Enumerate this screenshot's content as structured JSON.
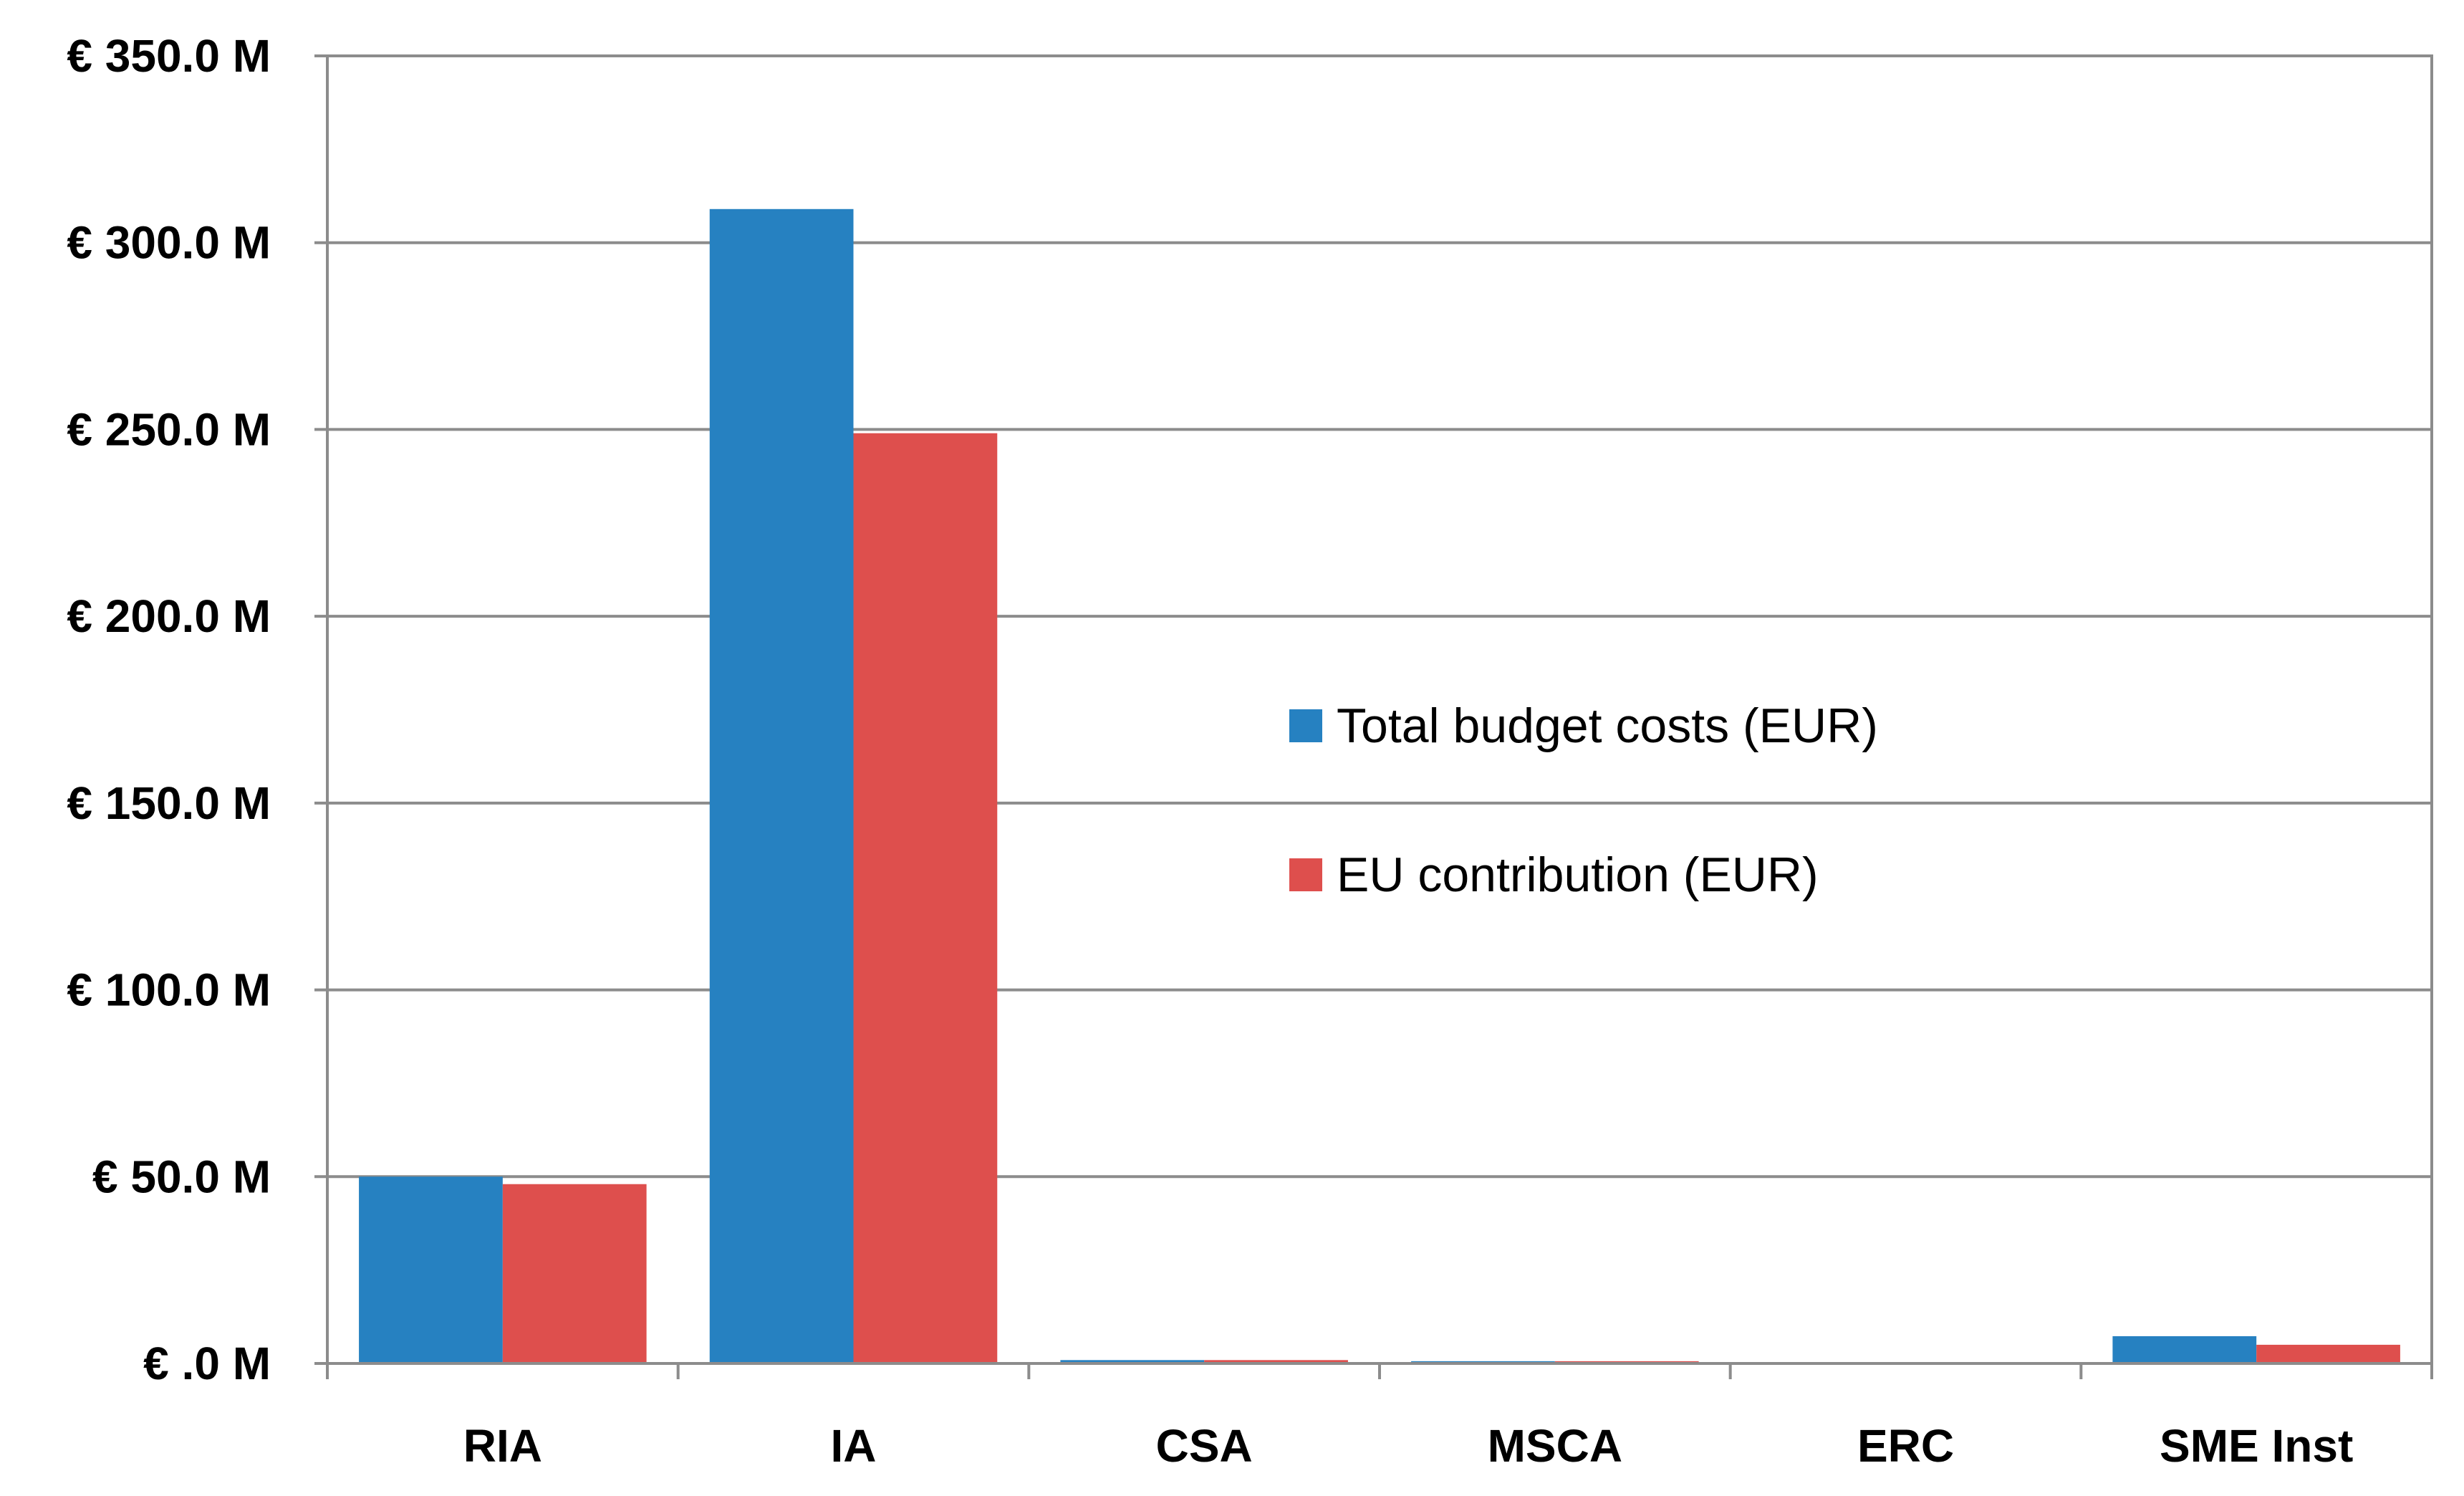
{
  "chart_data": {
    "type": "bar",
    "title": "",
    "xlabel": "",
    "ylabel": "",
    "categories": [
      "RIA",
      "IA",
      "CSA",
      "MSCA",
      "ERC",
      "SME Inst"
    ],
    "series": [
      {
        "name": "Total budget costs (EUR)",
        "color": "#2681C1",
        "values": [
          50.0,
          309.0,
          0.9,
          0.6,
          0.0,
          7.3
        ]
      },
      {
        "name": "EU contribution (EUR)",
        "color": "#DE4F4D",
        "values": [
          48.0,
          249.0,
          0.9,
          0.6,
          0.0,
          5.0
        ]
      }
    ],
    "ylim": [
      0,
      350
    ],
    "yticks": [
      0,
      50,
      100,
      150,
      200,
      250,
      300,
      350
    ],
    "ytick_labels": [
      "€ .0 M",
      "€ 50.0 M",
      "€ 100.0 M",
      "€ 150.0 M",
      "€ 200.0 M",
      "€ 250.0 M",
      "€ 300.0 M",
      "€ 350.0 M"
    ],
    "grid": true,
    "legend_position": "center-right"
  }
}
